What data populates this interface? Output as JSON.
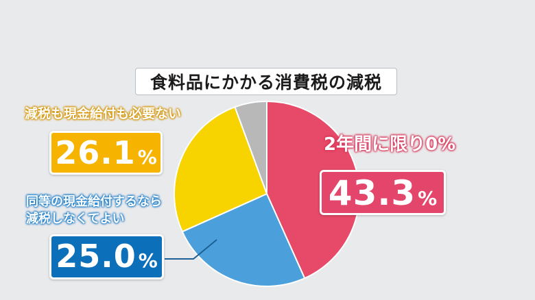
{
  "chart_data": {
    "type": "pie",
    "title": "食料品にかかる消費税の減税",
    "slices": [
      {
        "label": "2年間に限り0%",
        "value": 43.3,
        "display": "43.3",
        "color": "#e64a68"
      },
      {
        "label": "同等の現金給付するなら減税しなくてよい",
        "value": 25.0,
        "display": "25.0",
        "color": "#4ba0db"
      },
      {
        "label": "減税も現金給付も必要ない",
        "value": 26.1,
        "display": "26.1",
        "color": "#f7d300"
      },
      {
        "label": "",
        "value": 5.6,
        "display": "",
        "color": "#b8b8b8"
      }
    ]
  },
  "labels": {
    "title": "食料品にかかる消費税の減税",
    "red_caption": "2年間に限り0%",
    "red_value": "43.3",
    "blue_caption_line1": "同等の現金給付するなら",
    "blue_caption_line2": "減税しなくてよい",
    "blue_value": "25.0",
    "yellow_caption": "減税も現金給付も必要ない",
    "yellow_value": "26.1",
    "percent_sign": "%"
  }
}
